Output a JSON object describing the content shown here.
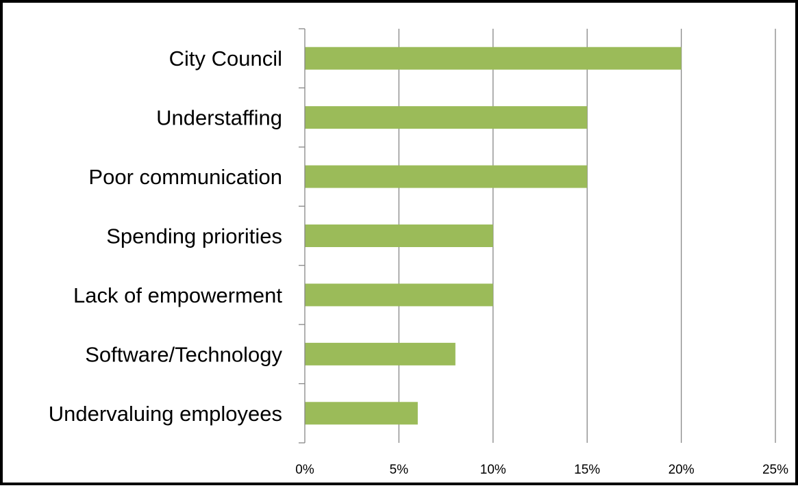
{
  "chart_data": {
    "type": "bar",
    "orientation": "horizontal",
    "title": "",
    "xlabel": "",
    "ylabel": "",
    "categories": [
      "City Council",
      "Understaffing",
      "Poor communication",
      "Spending priorities",
      "Lack of empowerment",
      "Software/Technology",
      "Undervaluing employees"
    ],
    "values": [
      0.2,
      0.15,
      0.15,
      0.1,
      0.1,
      0.08,
      0.06
    ],
    "xlim": [
      0,
      0.25
    ],
    "x_ticks": [
      0,
      0.05,
      0.1,
      0.15,
      0.2,
      0.25
    ],
    "x_tick_labels": [
      "0%",
      "5%",
      "10%",
      "15%",
      "20%",
      "25%"
    ],
    "grid": "vertical",
    "legend": "none",
    "bar_color": "#9BBB59",
    "grid_color": "#868686",
    "axis_color": "#868686"
  }
}
